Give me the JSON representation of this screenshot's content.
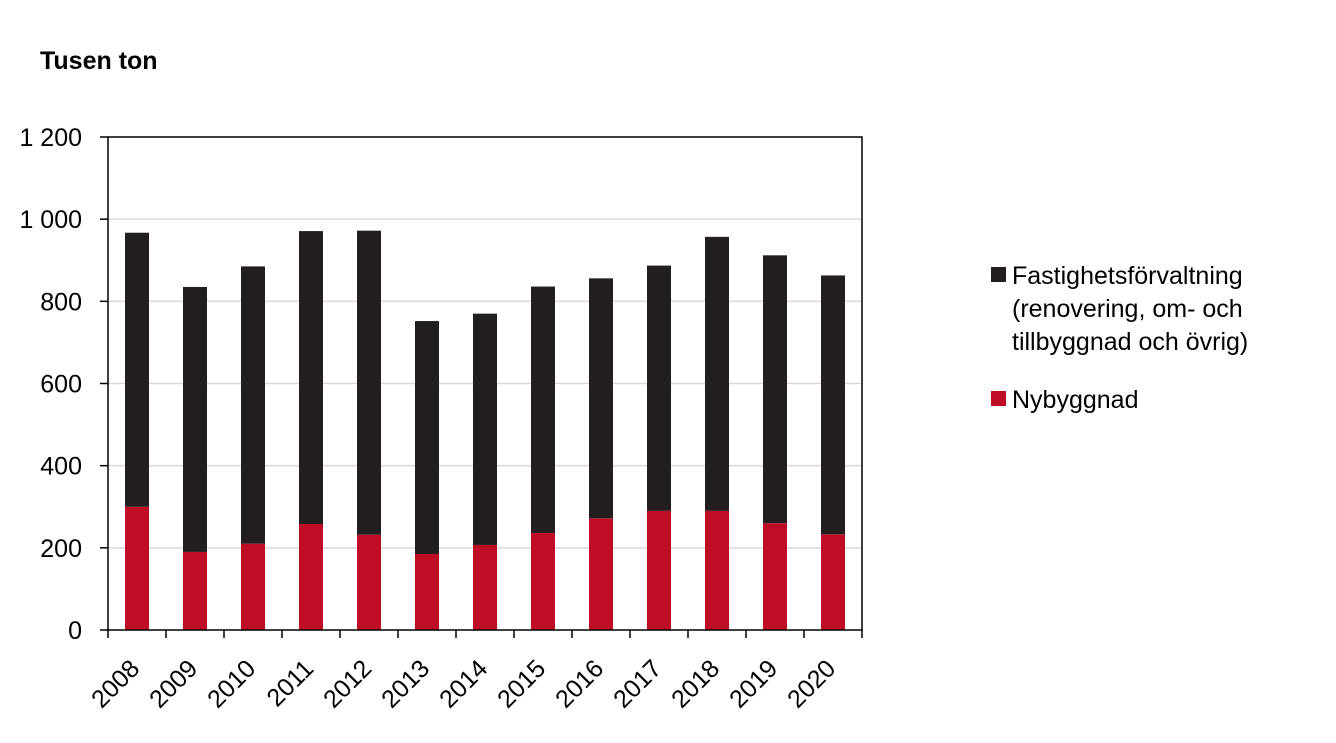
{
  "chart_data": {
    "type": "bar",
    "stacked": true,
    "ylabel": "Tusen ton",
    "ylim": [
      0,
      1200
    ],
    "yticks": [
      0,
      200,
      400,
      600,
      800,
      1000,
      1200
    ],
    "ytick_labels": [
      "0",
      "200",
      "400",
      "600",
      "800",
      "1 000",
      "1 200"
    ],
    "categories": [
      "2008",
      "2009",
      "2010",
      "2011",
      "2012",
      "2013",
      "2014",
      "2015",
      "2016",
      "2017",
      "2018",
      "2019",
      "2020"
    ],
    "grid": true,
    "legend_position": "right",
    "series": [
      {
        "name": "Nybyggnad",
        "color": "#c00d26",
        "values": [
          300,
          190,
          210,
          258,
          232,
          185,
          207,
          236,
          272,
          290,
          290,
          260,
          233
        ]
      },
      {
        "name": "Fastighetsförvaltning (renovering, om- och tillbyggnad och övrig)",
        "legend_lines": [
          "Fastighetsförvaltning",
          "(renovering, om- och",
          "tillbyggnad och övrig)"
        ],
        "color": "#231f20",
        "values": [
          667,
          645,
          675,
          713,
          740,
          567,
          563,
          600,
          584,
          597,
          667,
          652,
          630
        ]
      }
    ]
  }
}
